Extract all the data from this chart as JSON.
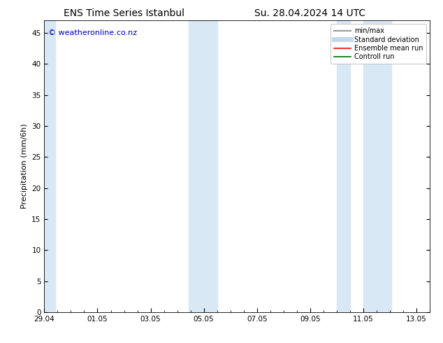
{
  "title_left": "ENS Time Series Istanbul",
  "title_right": "Su. 28.04.2024 14 UTC",
  "ylabel": "Precipitation (mm/6h)",
  "watermark": "© weatheronline.co.nz",
  "ylim": [
    0,
    47
  ],
  "yticks": [
    0,
    5,
    10,
    15,
    20,
    25,
    30,
    35,
    40,
    45
  ],
  "background_color": "#ffffff",
  "plot_bg_color": "#ffffff",
  "shaded_regions": [
    {
      "x_start": 0.0,
      "x_end": 0.42,
      "color": "#d8e8f5"
    },
    {
      "x_start": 5.42,
      "x_end": 6.5,
      "color": "#d8e8f5"
    },
    {
      "x_start": 11.0,
      "x_end": 11.5,
      "color": "#d8e8f5"
    },
    {
      "x_start": 12.0,
      "x_end": 13.05,
      "color": "#d8e8f5"
    }
  ],
  "xtick_labels": [
    "29.04",
    "01.05",
    "03.05",
    "05.05",
    "07.05",
    "09.05",
    "11.05",
    "13.05"
  ],
  "xtick_positions": [
    0,
    2,
    4,
    6,
    8,
    10,
    12,
    14
  ],
  "xlim": [
    0,
    14.5
  ],
  "legend_entries": [
    {
      "label": "min/max",
      "color": "#999999",
      "lw": 1.5
    },
    {
      "label": "Standard deviation",
      "color": "#c0d8f0",
      "lw": 5
    },
    {
      "label": "Ensemble mean run",
      "color": "#ff0000",
      "lw": 1.2
    },
    {
      "label": "Controll run",
      "color": "#006600",
      "lw": 1.2
    }
  ],
  "title_fontsize": 10,
  "axis_label_fontsize": 8,
  "tick_fontsize": 7.5,
  "watermark_color": "#0000bb",
  "watermark_fontsize": 8,
  "legend_fontsize": 7
}
